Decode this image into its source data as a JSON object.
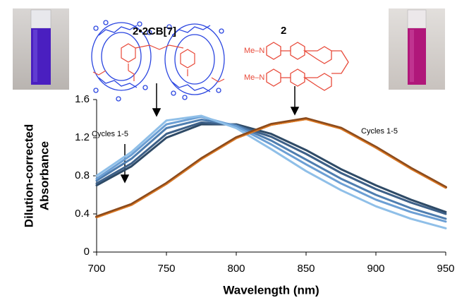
{
  "chart_data": {
    "type": "line",
    "xlabel": "Wavelength (nm)",
    "ylabel": [
      "Dilution-corrected",
      "Absorbance"
    ],
    "x": [
      700,
      725,
      750,
      775,
      800,
      825,
      850,
      875,
      900,
      925,
      950
    ],
    "xlim": [
      700,
      950
    ],
    "xticks": [
      700,
      750,
      800,
      850,
      900,
      950
    ],
    "ylim": [
      0,
      1.6
    ],
    "yticks": [
      0,
      0.4,
      0.8,
      1.2,
      1.6
    ],
    "grid": false,
    "series": [
      {
        "color": "#2e4a66",
        "values": [
          0.7,
          0.9,
          1.2,
          1.34,
          1.34,
          1.24,
          1.07,
          0.87,
          0.7,
          0.55,
          0.42
        ]
      },
      {
        "color": "#3d6088",
        "values": [
          0.72,
          0.93,
          1.24,
          1.36,
          1.33,
          1.21,
          1.03,
          0.83,
          0.66,
          0.52,
          0.4
        ]
      },
      {
        "color": "#4f7eb0",
        "values": [
          0.75,
          0.98,
          1.3,
          1.39,
          1.33,
          1.17,
          0.97,
          0.77,
          0.6,
          0.46,
          0.35
        ]
      },
      {
        "color": "#6c9fd4",
        "values": [
          0.77,
          1.02,
          1.34,
          1.42,
          1.32,
          1.13,
          0.92,
          0.72,
          0.55,
          0.42,
          0.32
        ]
      },
      {
        "color": "#8fbfe8",
        "values": [
          0.8,
          1.05,
          1.38,
          1.43,
          1.3,
          1.08,
          0.85,
          0.65,
          0.48,
          0.35,
          0.25
        ]
      },
      {
        "color": "#8a4a1c",
        "values": [
          0.37,
          0.5,
          0.72,
          0.98,
          1.2,
          1.34,
          1.4,
          1.3,
          1.1,
          0.88,
          0.68
        ]
      },
      {
        "color": "#e07a22",
        "values": [
          0.36,
          0.49,
          0.71,
          0.97,
          1.19,
          1.33,
          1.39,
          1.29,
          1.09,
          0.87,
          0.67
        ]
      }
    ],
    "annotations": [
      "Cycles 1-5",
      "Cycles 1-5",
      "2•2CB[7]",
      "2",
      "Me–N",
      "Me–N"
    ]
  }
}
